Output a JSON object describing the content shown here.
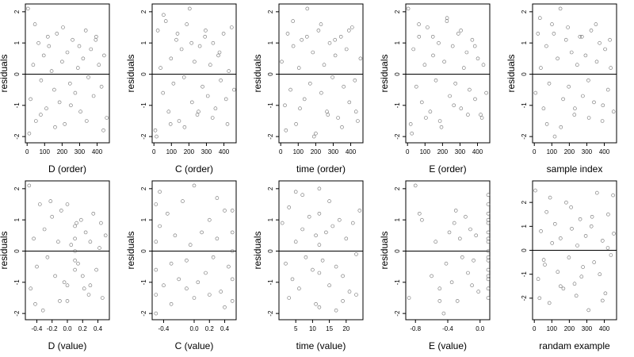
{
  "chart_data": [
    {
      "type": "scatter",
      "xlabel": "D (order)",
      "ylabel": "residuals",
      "xlim": [
        -10,
        470
      ],
      "ylim": [
        -2.2,
        2.25
      ],
      "xticks": [
        0,
        100,
        200,
        300,
        400
      ],
      "xtick_labels": [
        "0",
        "100",
        "200",
        "300",
        "400"
      ],
      "yticks": [
        -2,
        -1,
        0,
        1,
        2
      ],
      "ytick_labels": [
        "-2",
        "-1",
        "0",
        "1",
        "2"
      ],
      "hline": 0,
      "x": [
        5,
        20,
        35,
        50,
        65,
        80,
        95,
        110,
        125,
        140,
        155,
        170,
        185,
        200,
        215,
        230,
        245,
        260,
        275,
        290,
        305,
        320,
        335,
        350,
        365,
        380,
        395,
        410,
        425,
        440,
        455,
        12,
        45,
        78,
        118,
        160,
        205,
        250,
        298,
        340,
        392,
        436
      ],
      "y": [
        2.1,
        -0.8,
        0.3,
        -1.5,
        1.0,
        -0.2,
        0.6,
        -1.1,
        0.9,
        0.1,
        -0.5,
        1.3,
        -0.9,
        0.4,
        -1.6,
        0.7,
        -0.3,
        1.1,
        -0.6,
        0.2,
        -1.2,
        0.5,
        1.4,
        -0.1,
        0.8,
        -0.7,
        1.2,
        0.3,
        -0.4,
        0.6,
        -1.4,
        -1.9,
        1.6,
        -1.3,
        1.2,
        -1.7,
        1.5,
        -1.0,
        0.9,
        -1.5,
        1.1,
        -1.8
      ]
    },
    {
      "type": "scatter",
      "xlabel": "C (order)",
      "ylabel": "residuals",
      "xlim": [
        -10,
        470
      ],
      "ylim": [
        -2.2,
        2.25
      ],
      "xticks": [
        0,
        100,
        200,
        300,
        400
      ],
      "xtick_labels": [
        "0",
        "100",
        "200",
        "300",
        "400"
      ],
      "yticks": [
        -2,
        -1,
        0,
        1,
        2
      ],
      "ytick_labels": [
        "-2",
        "-1",
        "0",
        "1",
        "2"
      ],
      "hline": 0,
      "x": [
        8,
        22,
        38,
        52,
        68,
        84,
        98,
        112,
        128,
        144,
        158,
        172,
        188,
        204,
        218,
        232,
        248,
        262,
        278,
        292,
        308,
        322,
        338,
        352,
        368,
        382,
        398,
        412,
        428,
        444,
        458,
        15,
        55,
        95,
        135,
        175,
        215,
        255,
        295,
        335,
        375,
        420
      ],
      "y": [
        -1.8,
        1.4,
        0.2,
        -0.6,
        1.7,
        -1.2,
        0.5,
        -0.3,
        1.1,
        -1.5,
        0.8,
        -0.1,
        1.6,
        2.1,
        -0.9,
        0.4,
        -1.3,
        0.9,
        -0.4,
        1.2,
        -0.7,
        0.3,
        1.0,
        -1.1,
        0.6,
        -0.2,
        1.3,
        -0.8,
        0.1,
        1.5,
        -0.5,
        -2.0,
        1.9,
        -1.6,
        1.3,
        -1.7,
        1.0,
        -1.2,
        1.4,
        -1.4,
        0.7,
        -1.6
      ]
    },
    {
      "type": "scatter",
      "xlabel": "time (order)",
      "ylabel": "residuals",
      "xlim": [
        -10,
        470
      ],
      "ylim": [
        -2.2,
        2.25
      ],
      "xticks": [
        0,
        100,
        200,
        300,
        400
      ],
      "xtick_labels": [
        "0",
        "100",
        "200",
        "300",
        "400"
      ],
      "yticks": [
        -2,
        -1,
        0,
        1,
        2
      ],
      "ytick_labels": [
        "-2",
        "-1",
        "0",
        "1",
        "2"
      ],
      "hline": 0,
      "x": [
        6,
        24,
        40,
        56,
        72,
        88,
        104,
        120,
        136,
        152,
        168,
        184,
        200,
        216,
        232,
        248,
        264,
        280,
        296,
        312,
        328,
        344,
        360,
        376,
        392,
        408,
        424,
        440,
        456,
        30,
        70,
        110,
        150,
        190,
        230,
        270,
        310,
        350,
        390,
        430
      ],
      "y": [
        0.4,
        -1.0,
        1.3,
        -0.5,
        0.9,
        -1.6,
        0.2,
        1.1,
        -0.8,
        2.1,
        -0.3,
        0.7,
        -1.9,
        1.4,
        -0.6,
        0.3,
        -1.2,
        1.0,
        -0.1,
        0.6,
        -1.4,
        1.2,
        -0.4,
        0.8,
        -0.9,
        1.5,
        -0.2,
        -1.5,
        0.5,
        -1.8,
        1.7,
        -1.1,
        1.2,
        -2.0,
        1.6,
        -1.3,
        1.1,
        -1.7,
        1.4,
        -1.2
      ]
    },
    {
      "type": "scatter",
      "xlabel": "E (order)",
      "ylabel": "residuals",
      "xlim": [
        -10,
        470
      ],
      "ylim": [
        -2.2,
        2.25
      ],
      "xticks": [
        0,
        100,
        200,
        300,
        400
      ],
      "xtick_labels": [
        "0",
        "100",
        "200",
        "300",
        "400"
      ],
      "yticks": [
        -2,
        -1,
        0,
        1,
        2
      ],
      "ytick_labels": [
        "-2",
        "-1",
        "0",
        "1",
        "2"
      ],
      "hline": 0,
      "x": [
        4,
        18,
        34,
        50,
        66,
        82,
        98,
        114,
        130,
        146,
        162,
        178,
        194,
        210,
        226,
        242,
        258,
        274,
        290,
        306,
        322,
        338,
        354,
        370,
        386,
        402,
        418,
        434,
        450,
        25,
        65,
        105,
        145,
        185,
        225,
        265,
        305,
        345,
        385,
        425
      ],
      "y": [
        2.1,
        -1.6,
        0.8,
        -0.4,
        1.2,
        -0.9,
        0.3,
        1.5,
        -1.2,
        0.6,
        -0.2,
        1.0,
        -1.7,
        0.4,
        1.8,
        -0.7,
        0.9,
        -0.3,
        1.3,
        -1.1,
        0.2,
        0.7,
        -0.5,
        1.1,
        -0.8,
        0.5,
        -1.3,
        0.3,
        -0.6,
        -1.9,
        1.6,
        -1.4,
        1.2,
        -1.5,
        1.7,
        -1.0,
        1.4,
        -1.3,
        0.9,
        -1.4
      ]
    },
    {
      "type": "scatter",
      "xlabel": "sample index",
      "ylabel": "residuals",
      "xlim": [
        -10,
        470
      ],
      "ylim": [
        -2.2,
        2.25
      ],
      "xticks": [
        0,
        100,
        200,
        300,
        400
      ],
      "xtick_labels": [
        "0",
        "100",
        "200",
        "300",
        "400"
      ],
      "yticks": [
        -2,
        -1,
        0,
        1,
        2
      ],
      "ytick_labels": [
        "-2",
        "-1",
        "0",
        "1",
        "2"
      ],
      "hline": 0,
      "x": [
        7,
        21,
        37,
        53,
        69,
        85,
        101,
        117,
        133,
        149,
        165,
        181,
        197,
        213,
        229,
        245,
        261,
        277,
        293,
        309,
        325,
        341,
        357,
        373,
        389,
        405,
        421,
        437,
        453,
        32,
        72,
        112,
        152,
        192,
        232,
        272,
        312,
        352,
        392,
        432
      ],
      "y": [
        -0.6,
        1.3,
        0.2,
        -1.1,
        0.9,
        -0.3,
        1.6,
        -2.0,
        0.5,
        2.1,
        -0.8,
        1.1,
        -0.4,
        0.7,
        -1.3,
        0.3,
        1.2,
        -0.7,
        0.6,
        -0.2,
        1.4,
        -0.9,
        0.4,
        1.0,
        -1.5,
        0.8,
        -0.5,
        0.2,
        -1.2,
        1.8,
        -1.6,
        1.3,
        -1.7,
        1.5,
        -1.1,
        1.2,
        -1.4,
        1.6,
        -1.0,
        1.1
      ]
    },
    {
      "type": "scatter",
      "xlabel": "D (value)",
      "ylabel": "residuals",
      "xlim": [
        -0.55,
        0.55
      ],
      "ylim": [
        -2.2,
        2.25
      ],
      "xticks": [
        -0.4,
        -0.2,
        0.0,
        0.2,
        0.4
      ],
      "xtick_labels": [
        "-0.4",
        "-0.2",
        "0.0",
        "0.2",
        "0.4"
      ],
      "yticks": [
        -2,
        -1,
        0,
        1,
        2
      ],
      "ytick_labels": [
        "-2",
        "-1",
        "0",
        "1",
        "2"
      ],
      "hline": 0,
      "x": [
        -0.5,
        -0.48,
        -0.44,
        -0.4,
        -0.36,
        -0.32,
        -0.3,
        -0.26,
        -0.2,
        -0.16,
        -0.12,
        -0.08,
        -0.04,
        0.0,
        0.0,
        0.05,
        0.1,
        0.1,
        0.1,
        0.1,
        0.1,
        0.14,
        0.18,
        0.2,
        0.24,
        0.28,
        0.3,
        0.34,
        0.38,
        0.42,
        0.46,
        0.5,
        -0.42,
        -0.22,
        0.0,
        0.22,
        0.44,
        -0.1,
        0.12,
        0.3
      ],
      "y": [
        2.1,
        -1.2,
        0.4,
        -0.5,
        1.5,
        -1.9,
        0.7,
        -0.2,
        1.1,
        -0.8,
        0.3,
        1.3,
        -1.0,
        1.5,
        -1.1,
        0.2,
        -0.6,
        -0.3,
        0.0,
        0.4,
        0.8,
        -0.4,
        1.0,
        -0.8,
        0.6,
        -1.4,
        0.3,
        1.2,
        -0.6,
        0.1,
        -1.5,
        0.5,
        -1.7,
        1.6,
        -1.6,
        -1.2,
        0.9,
        -1.6,
        0.9,
        -1.1
      ]
    },
    {
      "type": "scatter",
      "xlabel": "C (value)",
      "ylabel": "residuals",
      "xlim": [
        -0.55,
        0.55
      ],
      "ylim": [
        -2.2,
        2.25
      ],
      "xticks": [
        -0.4,
        0.0,
        0.2,
        0.4
      ],
      "xtick_labels": [
        "-0.4",
        "0.0",
        "0.2",
        "0.4"
      ],
      "yticks": [
        -2,
        -1,
        0,
        1,
        2
      ],
      "ytick_labels": [
        "-2",
        "-1",
        "0",
        "1",
        "2"
      ],
      "hline": 0,
      "x": [
        -0.5,
        -0.5,
        -0.5,
        -0.5,
        -0.5,
        -0.45,
        -0.4,
        -0.35,
        -0.3,
        -0.25,
        -0.2,
        -0.15,
        -0.1,
        -0.05,
        0.0,
        0.05,
        0.1,
        0.15,
        0.2,
        0.25,
        0.3,
        0.35,
        0.4,
        0.45,
        0.5,
        0.5,
        0.5,
        0.5,
        0.5,
        -0.3,
        0.0,
        0.3,
        -0.1,
        0.2,
        0.4,
        -0.45
      ],
      "y": [
        1.5,
        -0.6,
        -1.4,
        0.3,
        -2.0,
        0.8,
        -1.1,
        1.2,
        -0.4,
        0.5,
        -0.9,
        1.6,
        -0.3,
        0.2,
        2.1,
        -1.0,
        0.6,
        -0.7,
        1.0,
        -0.2,
        0.4,
        -1.3,
        1.3,
        -0.5,
        1.3,
        0.0,
        -0.9,
        -1.6,
        0.6,
        -1.7,
        -1.5,
        1.7,
        -1.2,
        -1.4,
        -1.8,
        1.9
      ]
    },
    {
      "type": "scatter",
      "xlabel": "time (value)",
      "ylabel": "residuals",
      "xlim": [
        0,
        25
      ],
      "ylim": [
        -2.2,
        2.25
      ],
      "xticks": [
        5,
        10,
        15,
        20
      ],
      "xtick_labels": [
        "5",
        "10",
        "15",
        "20"
      ],
      "yticks": [
        -2,
        -1,
        0,
        1,
        2
      ],
      "ytick_labels": [
        "-2",
        "-1",
        "0",
        "1",
        "2"
      ],
      "hline": 0,
      "x": [
        1,
        2,
        3,
        4,
        5,
        6,
        7,
        8,
        9,
        10,
        11,
        12,
        12,
        12,
        12,
        12,
        13,
        14,
        15,
        16,
        17,
        18,
        19,
        20,
        21,
        22,
        23,
        24,
        3,
        7,
        11,
        15,
        19,
        23,
        5,
        17
      ],
      "y": [
        0.9,
        -0.4,
        1.4,
        -0.9,
        0.3,
        -1.2,
        0.7,
        -0.2,
        1.1,
        -0.6,
        0.5,
        2.0,
        -1.8,
        0.2,
        -0.7,
        1.2,
        -0.3,
        0.6,
        -1.1,
        0.8,
        -0.5,
        1.0,
        -0.8,
        0.4,
        -1.3,
        0.9,
        -0.1,
        1.3,
        -1.5,
        1.8,
        -1.7,
        1.6,
        -1.6,
        -1.4,
        1.9,
        -1.9
      ]
    },
    {
      "type": "scatter",
      "xlabel": "E (value)",
      "ylabel": "residuals",
      "xlim": [
        -0.92,
        0.12
      ],
      "ylim": [
        -2.2,
        2.25
      ],
      "xticks": [
        -0.8,
        -0.4,
        0.0
      ],
      "xtick_labels": [
        "-0.8",
        "-0.4",
        "0.0"
      ],
      "yticks": [
        -2,
        -1,
        0,
        1,
        2
      ],
      "ytick_labels": [
        "-2",
        "-1",
        "0",
        "1",
        "2"
      ],
      "hline": 0,
      "x": [
        -0.88,
        -0.8,
        -0.75,
        -0.72,
        -0.6,
        -0.55,
        -0.5,
        -0.45,
        -0.42,
        -0.38,
        -0.35,
        -0.32,
        -0.28,
        -0.25,
        -0.22,
        -0.18,
        -0.15,
        -0.12,
        -0.08,
        -0.05,
        -0.02,
        0.1,
        0.1,
        0.1,
        0.1,
        0.1,
        0.1,
        0.1,
        0.1,
        0.1,
        0.1,
        0.1,
        0.1,
        0.1,
        0.1,
        0.1,
        0.1,
        -0.5,
        -0.3,
        -0.1
      ],
      "y": [
        -1.5,
        2.1,
        1.2,
        1.0,
        -0.8,
        0.3,
        -1.2,
        -2.0,
        -0.4,
        0.6,
        -1.0,
        0.9,
        -1.6,
        0.4,
        -0.2,
        1.1,
        -0.7,
        0.7,
        -0.3,
        0.5,
        -1.3,
        1.8,
        1.5,
        1.2,
        0.9,
        0.6,
        0.3,
        0.0,
        -0.3,
        -0.6,
        -0.9,
        -1.2,
        -1.5,
        1.0,
        -0.8,
        0.4,
        -0.2,
        -1.6,
        1.3,
        -1.1
      ]
    },
    {
      "type": "scatter",
      "xlabel": "randam example",
      "ylabel": "",
      "xlim": [
        -10,
        470
      ],
      "ylim": [
        -2.9,
        2.9
      ],
      "xticks": [
        0,
        100,
        200,
        300,
        400
      ],
      "xtick_labels": [
        "0",
        "100",
        "200",
        "300",
        "400"
      ],
      "yticks": [
        -2,
        -1,
        0,
        1,
        2
      ],
      "ytick_labels": [
        "-2",
        "-1",
        "0",
        "1",
        "2"
      ],
      "hline": 0,
      "x": [
        6,
        22,
        38,
        54,
        70,
        86,
        102,
        118,
        134,
        150,
        166,
        182,
        198,
        214,
        230,
        246,
        262,
        278,
        294,
        310,
        326,
        342,
        358,
        374,
        390,
        406,
        422,
        438,
        454,
        30,
        90,
        150,
        210,
        270,
        330,
        390,
        450,
        60,
        240,
        420
      ],
      "y": [
        2.5,
        -1.2,
        0.8,
        -0.4,
        1.6,
        -2.2,
        0.3,
        1.1,
        -0.9,
        0.5,
        -1.6,
        2.0,
        -0.3,
        0.9,
        -1.4,
        0.2,
        1.3,
        -0.7,
        0.6,
        -2.5,
        1.0,
        -0.5,
        2.4,
        -1.0,
        0.4,
        -1.8,
        1.5,
        -0.2,
        0.7,
        -2.0,
        2.2,
        -1.5,
        1.8,
        -1.1,
        1.4,
        -2.1,
        2.3,
        -0.6,
        -1.9,
        0.1
      ]
    }
  ]
}
